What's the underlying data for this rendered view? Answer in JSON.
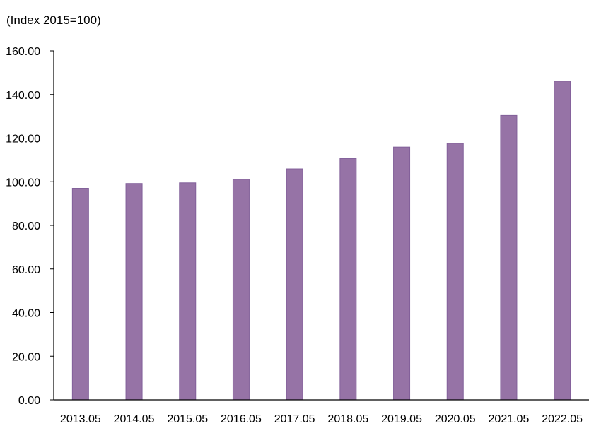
{
  "chart_data": {
    "type": "bar",
    "unit_label": "(Index 2015=100)",
    "categories": [
      "2013.05",
      "2014.05",
      "2015.05",
      "2016.05",
      "2017.05",
      "2018.05",
      "2019.05",
      "2020.05",
      "2021.05",
      "2022.05"
    ],
    "values": [
      97.0,
      99.2,
      99.5,
      101.1,
      105.9,
      110.6,
      115.9,
      117.6,
      130.4,
      146.1
    ],
    "ylim": [
      0,
      160
    ],
    "yticks": [
      "0.00",
      "20.00",
      "40.00",
      "60.00",
      "80.00",
      "100.00",
      "120.00",
      "140.00",
      "160.00"
    ],
    "grid": false,
    "colors": {
      "bar": "#9673a6",
      "bar_edge": "#82609a",
      "axis": "#000000"
    }
  }
}
